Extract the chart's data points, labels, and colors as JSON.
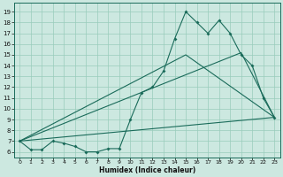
{
  "title": "",
  "xlabel": "Humidex (Indice chaleur)",
  "bg_color": "#cce8e0",
  "grid_color": "#99ccbb",
  "line_color": "#1a6b5a",
  "xlim": [
    -0.5,
    23.5
  ],
  "ylim": [
    5.5,
    19.8
  ],
  "yticks": [
    6,
    7,
    8,
    9,
    10,
    11,
    12,
    13,
    14,
    15,
    16,
    17,
    18,
    19
  ],
  "xticks": [
    0,
    1,
    2,
    3,
    4,
    5,
    6,
    7,
    8,
    9,
    10,
    11,
    12,
    13,
    14,
    15,
    16,
    17,
    18,
    19,
    20,
    21,
    22,
    23
  ],
  "line1_x": [
    0,
    1,
    2,
    3,
    4,
    5,
    6,
    7,
    8,
    9,
    10,
    11,
    12,
    13,
    14,
    15,
    16,
    17,
    18,
    19,
    20,
    21,
    22,
    23
  ],
  "line1_y": [
    7.0,
    6.2,
    6.2,
    7.0,
    6.8,
    6.5,
    6.0,
    6.0,
    6.3,
    6.3,
    9.0,
    11.5,
    12.0,
    13.5,
    16.5,
    19.0,
    18.0,
    17.0,
    18.2,
    17.0,
    15.0,
    14.0,
    11.0,
    9.2
  ],
  "line2_x": [
    0,
    23
  ],
  "line2_y": [
    7.0,
    9.2
  ],
  "line3_x": [
    0,
    15,
    23
  ],
  "line3_y": [
    7.0,
    15.0,
    9.2
  ],
  "line4_x": [
    0,
    20,
    23
  ],
  "line4_y": [
    7.0,
    15.2,
    9.2
  ]
}
